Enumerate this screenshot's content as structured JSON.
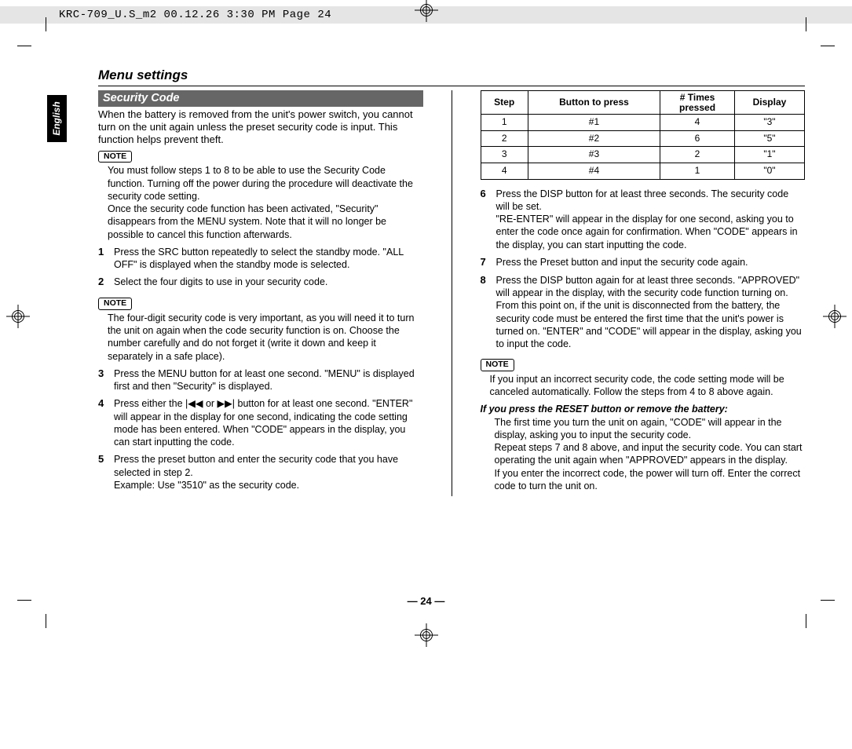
{
  "header": "KRC-709_U.S_m2  00.12.26 3:30 PM  Page 24",
  "lang_tab": "English",
  "section_title": "Menu settings",
  "security_bar": "Security Code",
  "intro": "When the battery is removed from the unit's power switch, you cannot turn on the unit again unless the preset security code is input. This function helps prevent theft.",
  "note_label": "NOTE",
  "note1": "You must follow steps 1 to 8 to be able to use the Security Code function. Turning off the power during the procedure will deactivate the security code setting.\nOnce the security code function has been activated, \"Security\" disappears from the MENU system. Note that it will no longer be possible to cancel this function afterwards.",
  "steps_left": [
    {
      "n": "1",
      "t": "Press the SRC button repeatedly to select the standby mode. \"ALL OFF\" is displayed when the standby mode is selected."
    },
    {
      "n": "2",
      "t": "Select the four digits to use in your security code."
    }
  ],
  "note2": "The four-digit security code is very important, as you will need it to turn the unit on again when the code security function is on. Choose the number carefully and do not forget it (write it down and keep it separately in a safe place).",
  "steps_left2": [
    {
      "n": "3",
      "t": "Press the MENU button for at least one second. \"MENU\" is displayed first and then \"Security\" is displayed."
    },
    {
      "n": "4",
      "t": "Press either the |◀◀ or ▶▶| button for at least one second. \"ENTER\" will appear in the display for one second, indicating the code setting mode has been entered. When \"CODE\" appears in the display, you can start inputting the code."
    },
    {
      "n": "5",
      "t": "Press the preset button and enter the security code that you have selected in step 2.\nExample: Use \"3510\" as the security code."
    }
  ],
  "table": {
    "columns": [
      "Step",
      "Button to press",
      "# Times pressed",
      "Display"
    ],
    "rows": [
      [
        "1",
        "#1",
        "4",
        "\"3\""
      ],
      [
        "2",
        "#2",
        "6",
        "\"5\""
      ],
      [
        "3",
        "#3",
        "2",
        "\"1\""
      ],
      [
        "4",
        "#4",
        "1",
        "\"0\""
      ]
    ]
  },
  "steps_right": [
    {
      "n": "6",
      "t": "Press the DISP button for at least three seconds. The security code will be set.\n\"RE-ENTER\" will appear in the display for one second, asking you to enter the code once again for confirmation. When \"CODE\" appears in the display, you can start inputting the code."
    },
    {
      "n": "7",
      "t": "Press the Preset button and input the security code again."
    },
    {
      "n": "8",
      "t": "Press the DISP button again for at least three seconds. \"APPROVED\" will appear in the display, with the security code function turning on. From this point on, if the unit is disconnected from the battery, the security code must be entered the first time that the unit's power is turned on. \"ENTER\" and \"CODE\" will appear in the display, asking you to input the code."
    }
  ],
  "note3": "If you input an incorrect security code, the code setting mode will be canceled automatically. Follow the steps from 4 to 8 above again.",
  "reset_heading": "If you press the RESET button or remove the battery:",
  "reset_body": "The first time you turn the unit on again, \"CODE\" will appear in the display, asking you to input the security code.\nRepeat steps 7 and 8 above, and input the security code. You can start operating the unit again when \"APPROVED\" appears in the display.\nIf you enter the incorrect code, the power will turn off. Enter the correct code to turn the unit on.",
  "page_number": "— 24 —",
  "colors": {
    "header_bg": "#e5e5e5",
    "bar_bg": "#666666",
    "text": "#000000"
  }
}
